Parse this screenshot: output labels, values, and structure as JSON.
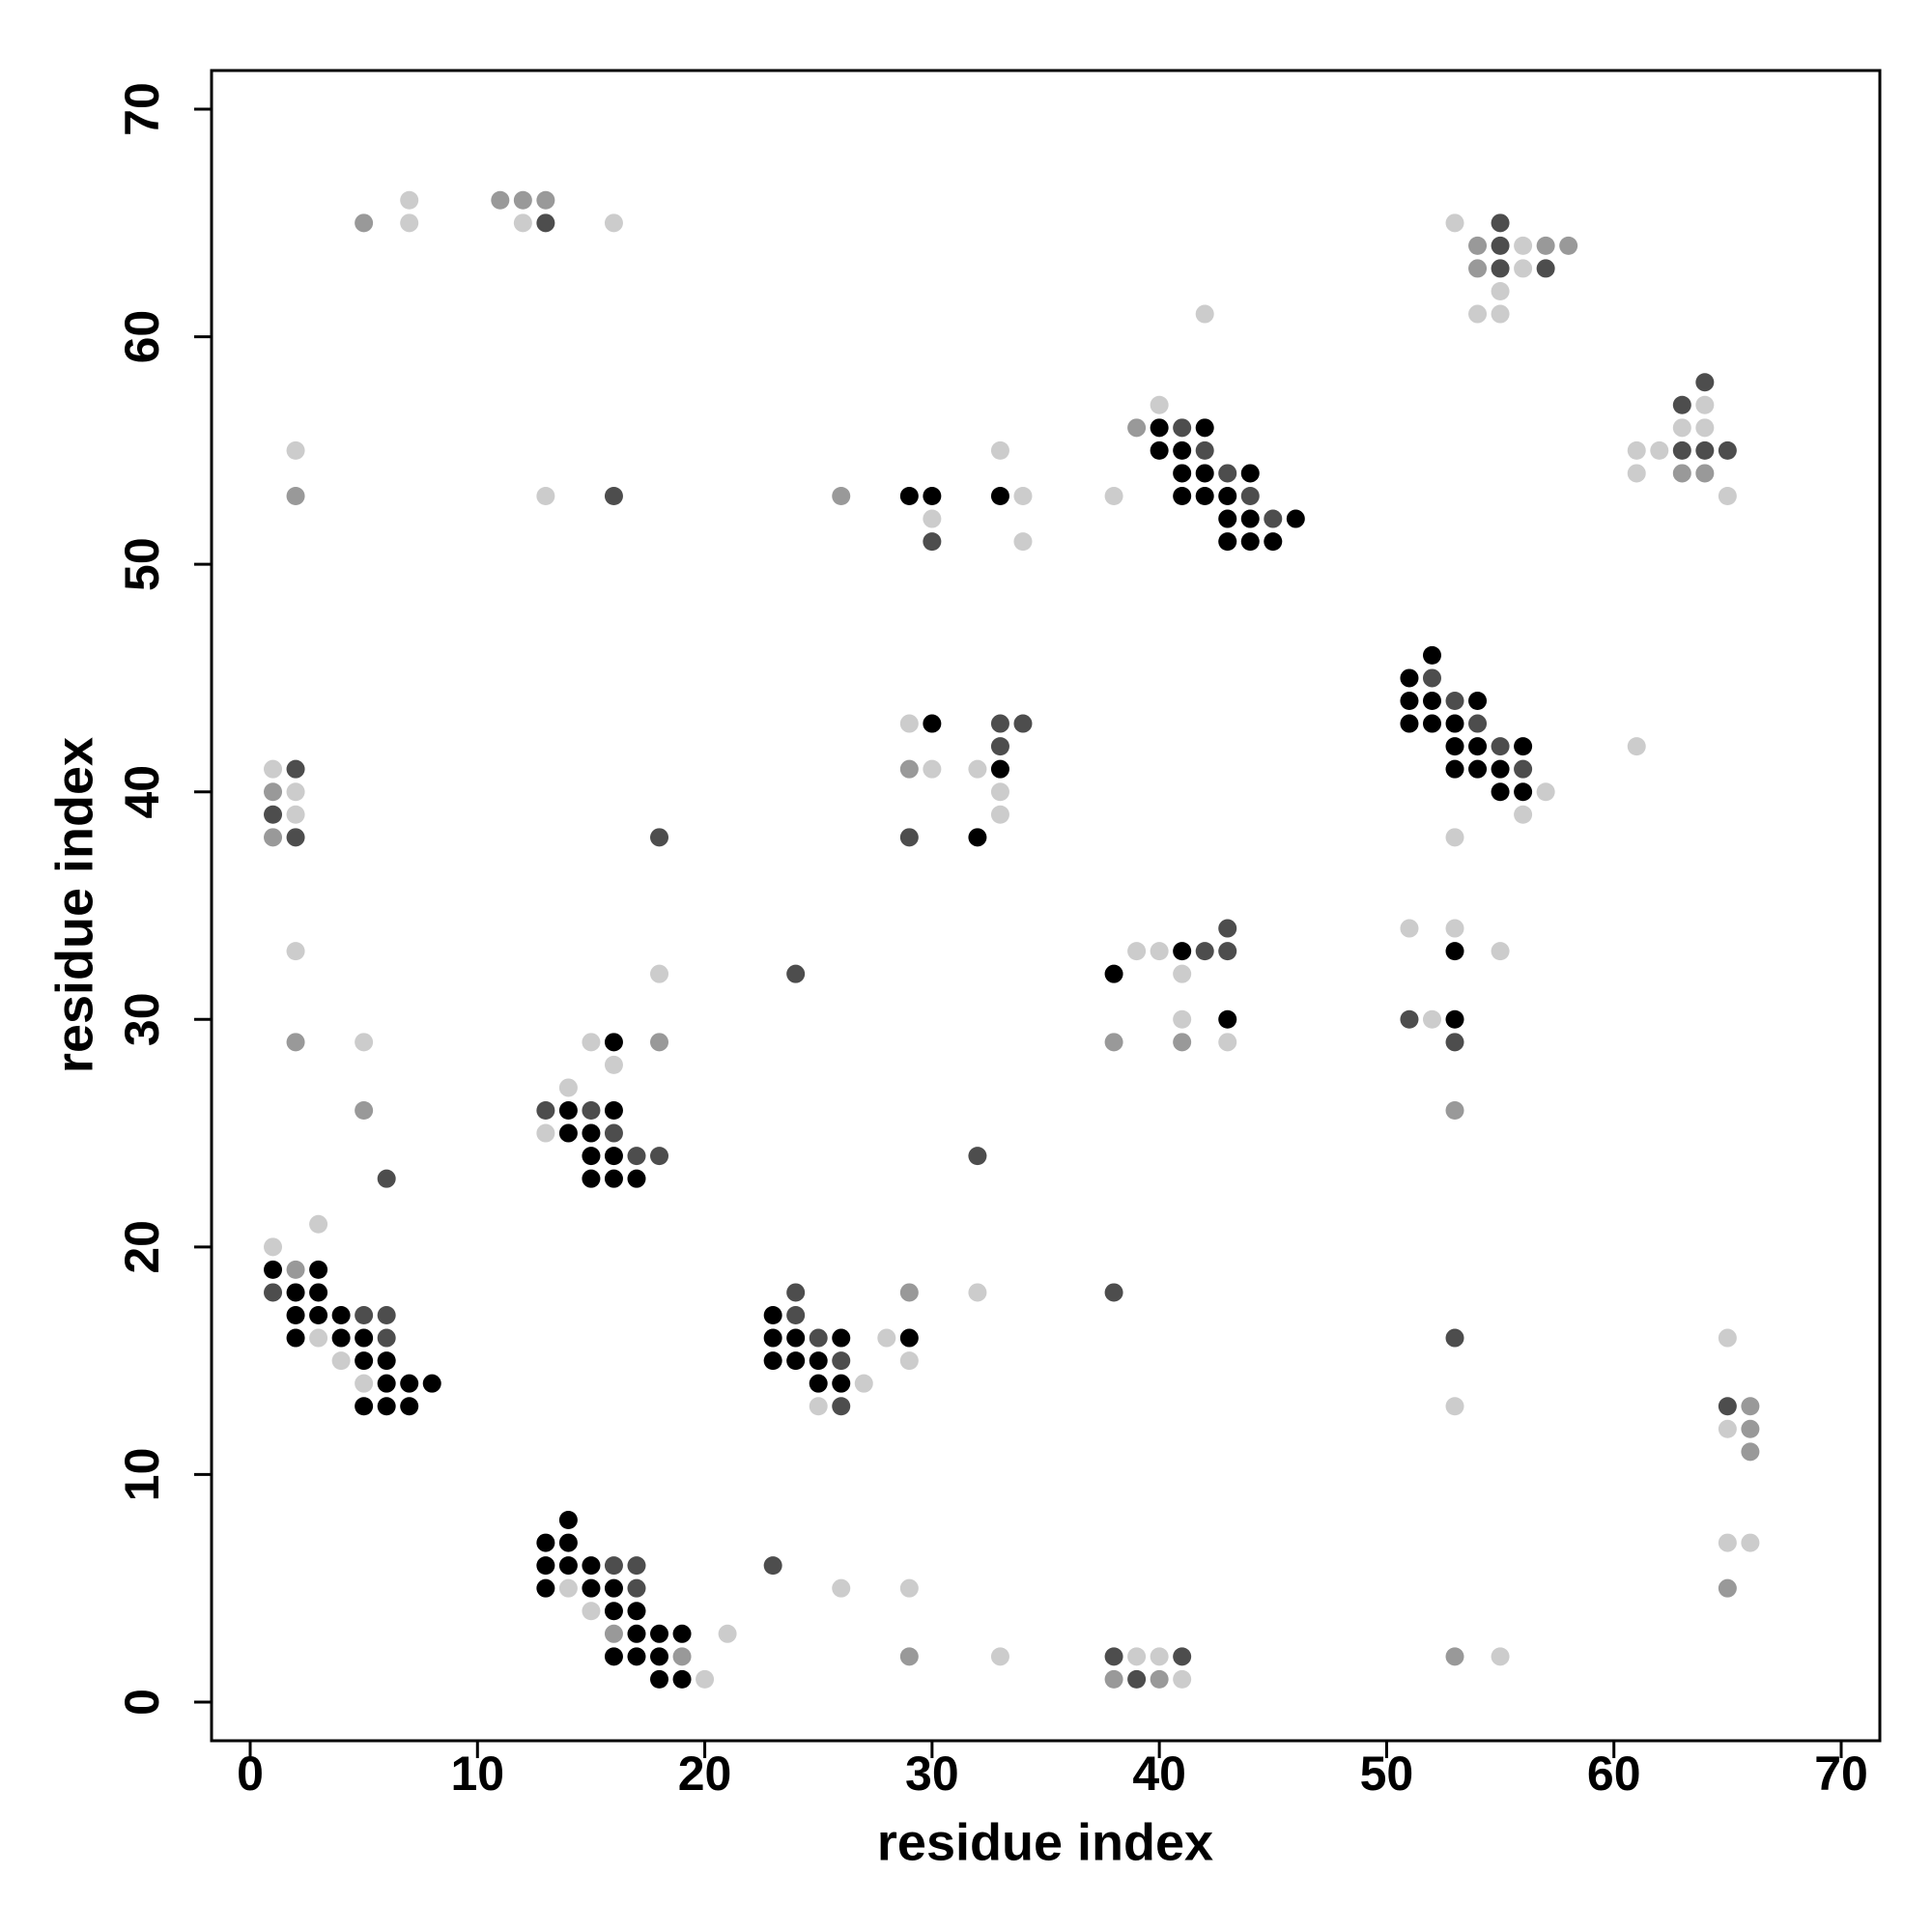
{
  "chart_data": {
    "type": "scatter",
    "xlabel": "residue index",
    "ylabel": "residue index",
    "xlim": [
      -1.7,
      71.7
    ],
    "ylim": [
      -1.7,
      71.7
    ],
    "xticks": [
      0,
      10,
      20,
      30,
      40,
      50,
      60,
      70
    ],
    "yticks": [
      0,
      10,
      20,
      30,
      40,
      50,
      60,
      70
    ],
    "series": [
      {
        "color": "#000000",
        "x": [
          29,
          30,
          33,
          40,
          42,
          40,
          41,
          41,
          42,
          44,
          41,
          42,
          43,
          43,
          44,
          46,
          43,
          44,
          45,
          52,
          51,
          51,
          52,
          54,
          51,
          52,
          53,
          53,
          54,
          56,
          53,
          54,
          55,
          55,
          56,
          30,
          33,
          32,
          16,
          14,
          16,
          14,
          15,
          15,
          16,
          15,
          16,
          17,
          38,
          41,
          43,
          53,
          53,
          1,
          3,
          2,
          3,
          2,
          3,
          4,
          2,
          4,
          5,
          5,
          6,
          6,
          7,
          8,
          5,
          6,
          7,
          23,
          23,
          24,
          26,
          29,
          23,
          24,
          25,
          25,
          26,
          14,
          13,
          14,
          13,
          14,
          15,
          13,
          15,
          16,
          16,
          17,
          17,
          18,
          19,
          16,
          17,
          18,
          18,
          19
        ],
        "y": [
          53,
          53,
          53,
          56,
          56,
          55,
          55,
          54,
          54,
          54,
          53,
          53,
          53,
          52,
          52,
          52,
          51,
          51,
          51,
          46,
          45,
          44,
          44,
          44,
          43,
          43,
          43,
          42,
          42,
          42,
          41,
          41,
          41,
          40,
          40,
          43,
          41,
          38,
          29,
          26,
          26,
          25,
          25,
          24,
          24,
          23,
          23,
          23,
          32,
          33,
          30,
          33,
          30,
          19,
          19,
          18,
          18,
          17,
          17,
          17,
          16,
          16,
          16,
          15,
          15,
          14,
          14,
          14,
          13,
          13,
          13,
          17,
          16,
          16,
          16,
          16,
          15,
          15,
          15,
          14,
          14,
          8,
          7,
          7,
          6,
          6,
          6,
          5,
          5,
          5,
          4,
          4,
          3,
          3,
          3,
          2,
          2,
          2,
          1,
          1
        ]
      },
      {
        "color": "#4d4d4d",
        "x": [
          13,
          55,
          55,
          55,
          57,
          64,
          63,
          63,
          64,
          65,
          16,
          30,
          41,
          42,
          43,
          44,
          45,
          52,
          53,
          54,
          55,
          56,
          33,
          34,
          33,
          29,
          2,
          1,
          2,
          18,
          6,
          24,
          13,
          15,
          16,
          17,
          18,
          32,
          42,
          43,
          43,
          51,
          53,
          1,
          5,
          6,
          6,
          24,
          24,
          25,
          26,
          26,
          38,
          53,
          65,
          16,
          17,
          17,
          23,
          38,
          41,
          39
        ],
        "y": [
          65,
          65,
          64,
          63,
          63,
          58,
          57,
          55,
          55,
          55,
          53,
          51,
          56,
          55,
          54,
          53,
          52,
          45,
          44,
          43,
          42,
          41,
          43,
          43,
          42,
          38,
          41,
          39,
          38,
          38,
          23,
          32,
          26,
          26,
          25,
          24,
          24,
          24,
          33,
          33,
          34,
          30,
          29,
          18,
          17,
          17,
          16,
          18,
          17,
          16,
          15,
          13,
          18,
          16,
          13,
          6,
          6,
          5,
          6,
          2,
          2,
          1
        ]
      },
      {
        "color": "#999999",
        "x": [
          5,
          11,
          12,
          13,
          54,
          57,
          58,
          54,
          63,
          64,
          2,
          26,
          39,
          29,
          1,
          1,
          2,
          5,
          18,
          38,
          41,
          53,
          2,
          29,
          66,
          66,
          66,
          65,
          16,
          19,
          29,
          38,
          40,
          53
        ],
        "y": [
          65,
          66,
          66,
          66,
          64,
          64,
          64,
          63,
          54,
          54,
          53,
          53,
          56,
          41,
          40,
          38,
          29,
          26,
          29,
          29,
          29,
          26,
          19,
          18,
          13,
          12,
          11,
          5,
          3,
          2,
          2,
          1,
          1,
          2
        ]
      },
      {
        "color": "#cccccc",
        "x": [
          7,
          7,
          12,
          16,
          53,
          56,
          56,
          55,
          54,
          55,
          42,
          64,
          63,
          64,
          61,
          62,
          61,
          65,
          2,
          13,
          30,
          33,
          34,
          34,
          38,
          40,
          57,
          56,
          53,
          61,
          29,
          30,
          32,
          33,
          33,
          1,
          2,
          2,
          2,
          5,
          15,
          16,
          14,
          18,
          13,
          39,
          40,
          41,
          41,
          43,
          51,
          53,
          55,
          52,
          1,
          3,
          3,
          4,
          5,
          28,
          29,
          27,
          25,
          32,
          53,
          65,
          65,
          65,
          66,
          14,
          15,
          21,
          20,
          26,
          29,
          33,
          39,
          40,
          41,
          55
        ],
        "y": [
          66,
          65,
          65,
          65,
          65,
          64,
          63,
          62,
          61,
          61,
          61,
          57,
          56,
          56,
          55,
          55,
          54,
          53,
          55,
          53,
          52,
          55,
          53,
          51,
          53,
          57,
          40,
          39,
          38,
          42,
          43,
          41,
          41,
          40,
          39,
          41,
          40,
          39,
          33,
          29,
          29,
          28,
          27,
          32,
          25,
          33,
          33,
          32,
          30,
          29,
          34,
          34,
          33,
          30,
          20,
          21,
          16,
          15,
          14,
          16,
          15,
          14,
          13,
          18,
          13,
          16,
          12,
          7,
          7,
          5,
          4,
          3,
          1,
          5,
          5,
          2,
          2,
          2,
          1,
          2
        ]
      }
    ]
  }
}
